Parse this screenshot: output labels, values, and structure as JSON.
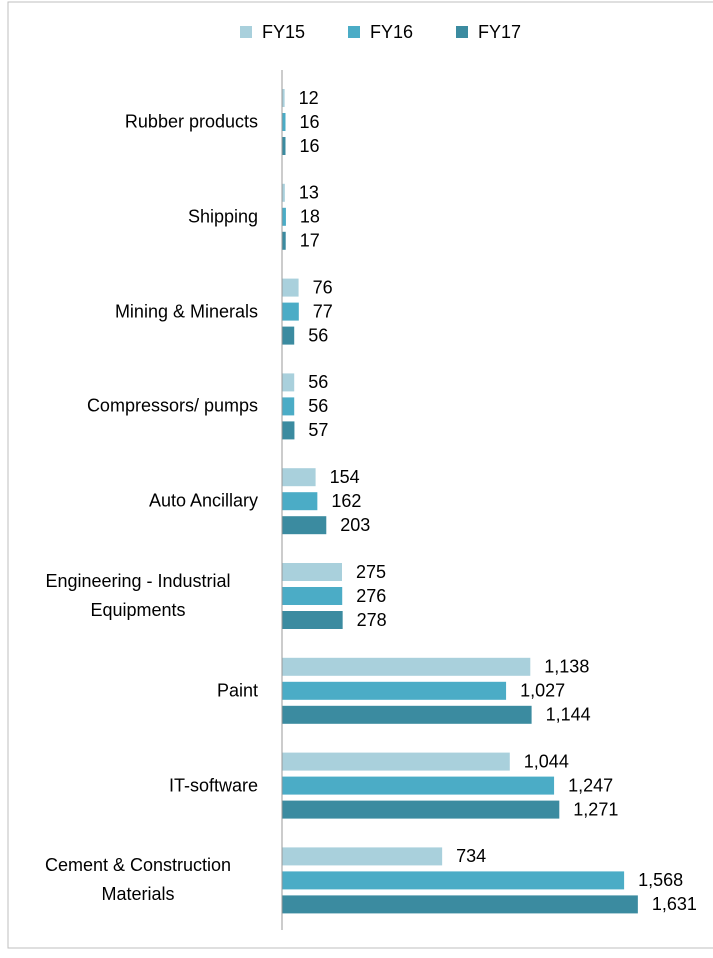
{
  "chart_data": {
    "type": "bar",
    "orientation": "horizontal",
    "categories": [
      "Rubber products",
      "Shipping",
      "Mining & Minerals",
      "Compressors/ pumps",
      "Auto Ancillary",
      "Engineering - Industrial Equipments",
      "Paint",
      "IT-software",
      "Cement & Construction Materials"
    ],
    "series": [
      {
        "name": "FY15",
        "color": "#a9d0dc",
        "values": [
          12,
          13,
          76,
          56,
          154,
          275,
          1138,
          1044,
          734
        ],
        "value_labels": [
          "12",
          "13",
          "76",
          "56",
          "154",
          "275",
          "1,138",
          "1,044",
          "734"
        ]
      },
      {
        "name": "FY16",
        "color": "#4bacc6",
        "values": [
          16,
          18,
          77,
          56,
          162,
          276,
          1027,
          1247,
          1568
        ],
        "value_labels": [
          "16",
          "18",
          "77",
          "56",
          "162",
          "276",
          "1,027",
          "1,247",
          "1,568"
        ]
      },
      {
        "name": "FY17",
        "color": "#3b8ba0",
        "values": [
          16,
          17,
          56,
          57,
          203,
          278,
          1144,
          1271,
          1631
        ],
        "value_labels": [
          "16",
          "17",
          "56",
          "57",
          "203",
          "278",
          "1,144",
          "1,271",
          "1,631"
        ]
      }
    ],
    "xlim": [
      0,
      1650
    ],
    "legend": "top"
  }
}
